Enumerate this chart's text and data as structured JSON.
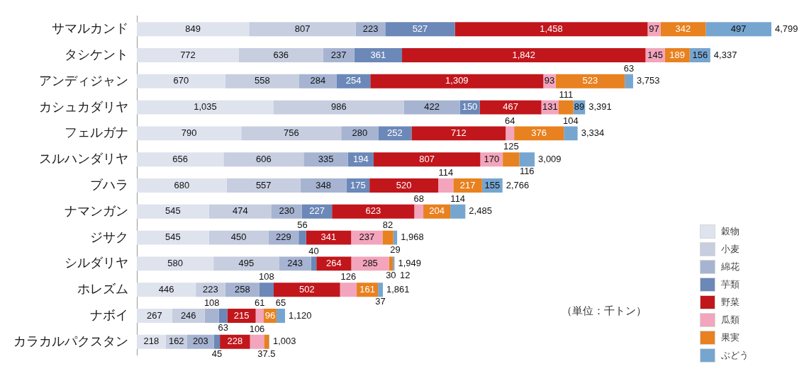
{
  "chart_data": {
    "type": "bar",
    "orientation": "horizontal",
    "stacked": true,
    "tick_labels": "y",
    "legend": "bottom right",
    "categories": [
      "サマルカンド",
      "タシケント",
      "アンディジャン",
      "カシュカダリヤ",
      "フェルガナ",
      "スルハンダリヤ",
      "ブハラ",
      "ナマンガン",
      "ジサク",
      "シルダリヤ",
      "ホレズム",
      "ナボイ",
      "カラカルパクスタン"
    ],
    "series": [
      {
        "name": "穀物",
        "color": "#dfe3ee",
        "values": [
          849,
          772,
          670,
          1035,
          790,
          656,
          680,
          545,
          545,
          580,
          446,
          267,
          218
        ],
        "value_labels": [
          "849",
          "772",
          "670",
          "1,035",
          "790",
          "656",
          "680",
          "545",
          "545",
          "580",
          "446",
          "267",
          "218"
        ]
      },
      {
        "name": "小麦",
        "color": "#c6cee0",
        "values": [
          807,
          636,
          558,
          986,
          756,
          606,
          557,
          474,
          450,
          495,
          223,
          246,
          162
        ],
        "value_labels": [
          "807",
          "636",
          "558",
          "986",
          "756",
          "606",
          "557",
          "474",
          "450",
          "495",
          "223",
          "246",
          "162"
        ]
      },
      {
        "name": "綿花",
        "color": "#a6b4d2",
        "values": [
          223,
          237,
          284,
          422,
          280,
          335,
          348,
          230,
          229,
          243,
          258,
          108,
          203
        ],
        "value_labels": [
          "223",
          "237",
          "284",
          "422",
          "280",
          "335",
          "348",
          "230",
          "229",
          "243",
          "258",
          "108",
          "203"
        ]
      },
      {
        "name": "芋類",
        "color": "#6b88b8",
        "values": [
          527,
          361,
          254,
          150,
          252,
          194,
          175,
          227,
          56,
          40,
          108,
          63,
          45
        ],
        "value_labels": [
          "527",
          "361",
          "254",
          "150",
          "252",
          "194",
          "175",
          "227",
          "56",
          "40",
          "108",
          "63",
          "45"
        ]
      },
      {
        "name": "野菜",
        "color": "#c1161c",
        "values": [
          1458,
          1842,
          1309,
          467,
          712,
          807,
          520,
          623,
          341,
          264,
          502,
          215,
          228
        ],
        "value_labels": [
          "1,458",
          "1,842",
          "1,309",
          "467",
          "712",
          "807",
          "520",
          "623",
          "341",
          "264",
          "502",
          "215",
          "228"
        ]
      },
      {
        "name": "瓜類",
        "color": "#f2a5bd",
        "values": [
          97,
          145,
          93,
          131,
          64,
          170,
          114,
          68,
          237,
          285,
          126,
          61,
          106
        ],
        "value_labels": [
          "97",
          "145",
          "93",
          "131",
          "64",
          "170",
          "114",
          "68",
          "237",
          "285",
          "126",
          "61",
          "106"
        ]
      },
      {
        "name": "果実",
        "color": "#e8811f",
        "values": [
          342,
          189,
          523,
          111,
          376,
          125,
          217,
          204,
          82,
          30,
          161,
          96,
          37.5
        ],
        "value_labels": [
          "342",
          "189",
          "523",
          "111",
          "376",
          "125",
          "217",
          "204",
          "82",
          "30",
          "161",
          "96",
          "37.5"
        ]
      },
      {
        "name": "ぶどう",
        "color": "#76a5d0",
        "values": [
          497,
          156,
          63,
          89,
          104,
          116,
          155,
          114,
          29,
          12,
          37,
          65,
          3.5
        ],
        "value_labels": [
          "497",
          "156",
          "63",
          "89",
          "104",
          "116",
          "155",
          "114",
          "29",
          "12",
          "37",
          "65",
          null
        ]
      }
    ],
    "totals": [
      "4,799",
      "4,337",
      "3,753",
      "3,391",
      "3,334",
      "3,009",
      "2,766",
      "2,485",
      "1,968",
      "1,949",
      "1,861",
      "1,120",
      "1,003"
    ],
    "annotations": [
      "（単位：千トン）"
    ]
  }
}
